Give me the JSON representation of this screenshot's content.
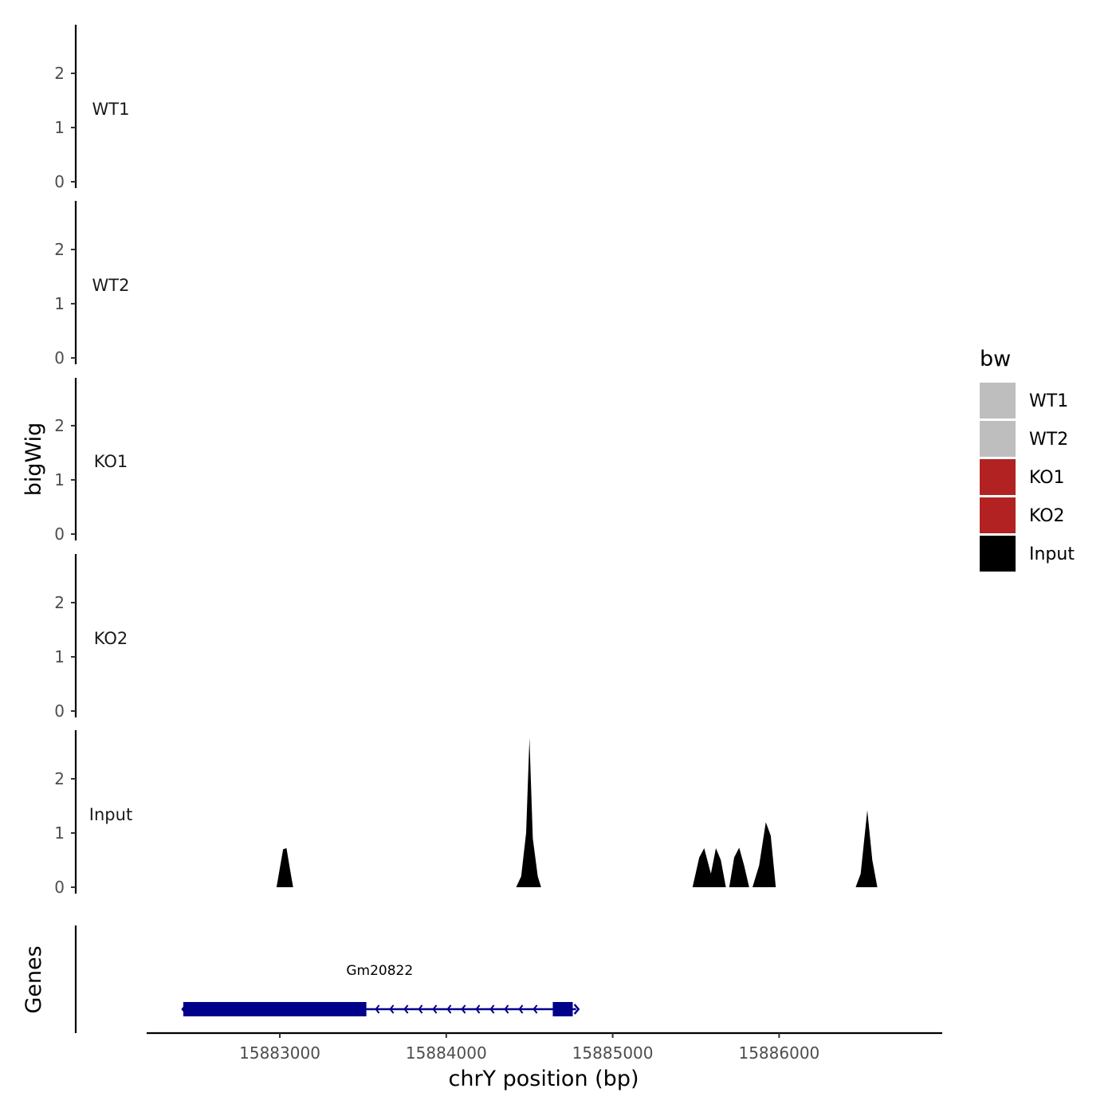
{
  "chart_data": {
    "type": "area",
    "ylabel": "bigWig",
    "xlabel": "chrY position (bp)",
    "xlim": [
      15882200,
      15886980
    ],
    "ylim": [
      0,
      2.9
    ],
    "y_ticks": [
      0,
      1,
      2
    ],
    "x_ticks": [
      15883000,
      15884000,
      15885000,
      15886000
    ],
    "x_tick_labels": [
      "15883000",
      "15884000",
      "15885000",
      "15886000"
    ],
    "tracks": [
      {
        "name": "WT1",
        "color": "#bebebe",
        "peaks": []
      },
      {
        "name": "WT2",
        "color": "#bebebe",
        "peaks": []
      },
      {
        "name": "KO1",
        "color": "#b22222",
        "peaks": []
      },
      {
        "name": "KO2",
        "color": "#b22222",
        "peaks": []
      },
      {
        "name": "Input",
        "color": "#000000",
        "peaks": [
          {
            "x": [
              15882980,
              15883000,
              15883020,
              15883040,
              15883060,
              15883080
            ],
            "y": [
              0,
              0.35,
              0.7,
              0.72,
              0.35,
              0
            ]
          },
          {
            "x": [
              15884420,
              15884450,
              15884480,
              15884500,
              15884520,
              15884550,
              15884570
            ],
            "y": [
              0,
              0.2,
              1.0,
              2.75,
              0.9,
              0.2,
              0
            ]
          },
          {
            "x": [
              15885480,
              15885520,
              15885550,
              15885590,
              15885620,
              15885650,
              15885680
            ],
            "y": [
              0,
              0.55,
              0.72,
              0.25,
              0.72,
              0.5,
              0
            ]
          },
          {
            "x": [
              15885700,
              15885730,
              15885760,
              15885790,
              15885820
            ],
            "y": [
              0,
              0.55,
              0.73,
              0.4,
              0
            ]
          },
          {
            "x": [
              15885840,
              15885880,
              15885920,
              15885950,
              15885980
            ],
            "y": [
              0,
              0.4,
              1.2,
              0.95,
              0
            ]
          },
          {
            "x": [
              15886460,
              15886490,
              15886530,
              15886560,
              15886590
            ],
            "y": [
              0,
              0.25,
              1.42,
              0.5,
              0
            ]
          }
        ]
      }
    ],
    "legend": {
      "title": "bw",
      "position": "right",
      "items": [
        {
          "label": "WT1",
          "color": "#bebebe"
        },
        {
          "label": "WT2",
          "color": "#bebebe"
        },
        {
          "label": "KO1",
          "color": "#b22222"
        },
        {
          "label": "KO2",
          "color": "#b22222"
        },
        {
          "label": "Input",
          "color": "#000000"
        }
      ]
    },
    "genes_panel": {
      "ylabel": "Genes",
      "color": "#00008b",
      "genes": [
        {
          "name": "Gm20822",
          "strand": "-",
          "start": 15882420,
          "end": 15884780,
          "exons": [
            [
              15882420,
              15883520
            ],
            [
              15884640,
              15884760
            ]
          ]
        }
      ]
    },
    "grid": false
  }
}
